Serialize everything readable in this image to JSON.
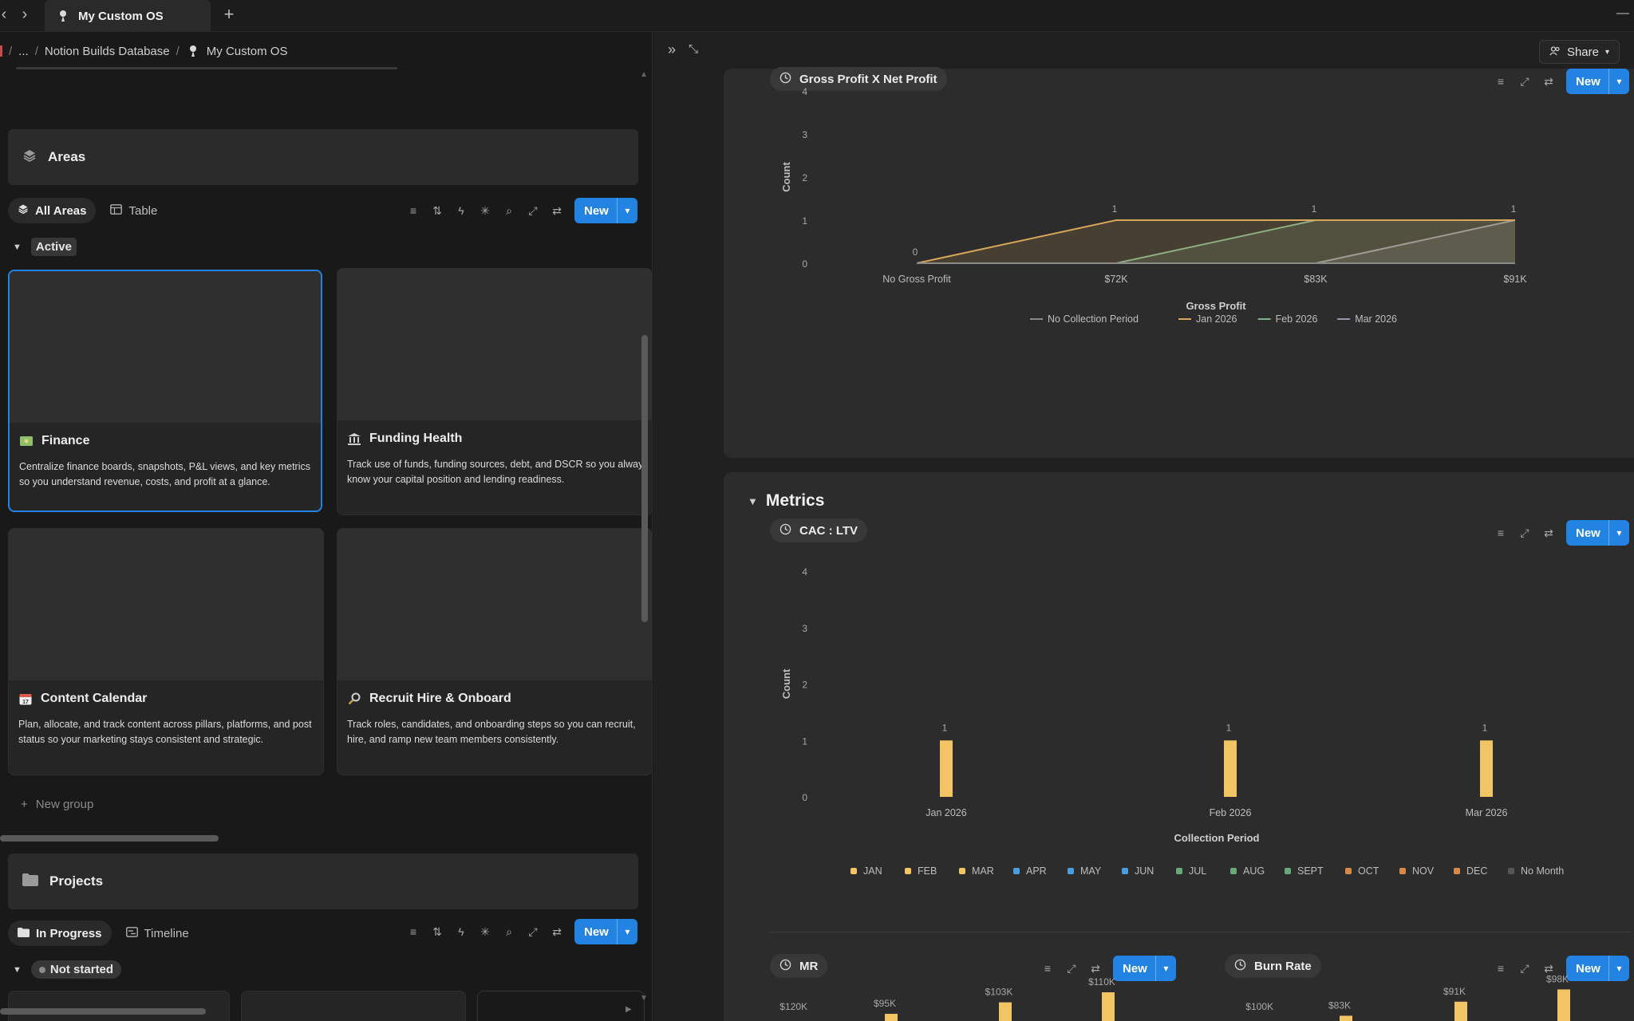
{
  "tabbar": {
    "tab_title": "My Custom OS",
    "new_tab_symbol": "+"
  },
  "breadcrumb": {
    "ellipsis": "...",
    "parent": "Notion Builds Database",
    "current": "My Custom OS"
  },
  "header": {
    "share_label": "Share"
  },
  "areas": {
    "title": "Areas",
    "views": [
      {
        "label": "All Areas",
        "active": true
      },
      {
        "label": "Table",
        "active": false
      }
    ],
    "new_label": "New",
    "group_label": "Active",
    "cards": [
      {
        "title": "Finance",
        "icon": "money-icon",
        "description": "Centralize finance boards, snapshots, P&L views, and key metrics\nso you understand revenue, costs, and profit at a glance."
      },
      {
        "title": "Funding Health",
        "icon": "bank-icon",
        "description": "Track use of funds, funding sources, debt, and DSCR so you alway\nknow your capital position and lending readiness."
      },
      {
        "title": "Content Calendar",
        "icon": "calendar-icon",
        "description": "Plan, allocate, and track content across pillars, platforms, and post\nstatus so your marketing stays consistent and strategic."
      },
      {
        "title": "Recruit Hire & Onboard",
        "icon": "magnifier-icon",
        "description": "Track roles, candidates, and onboarding steps so you can recruit,\nhire, and ramp new team members consistently."
      }
    ],
    "new_group_label": "New group"
  },
  "projects": {
    "title": "Projects",
    "views": [
      {
        "label": "In Progress",
        "active": true
      },
      {
        "label": "Timeline",
        "active": false
      }
    ],
    "new_label": "New",
    "group_label": "Not started"
  },
  "charts": {
    "gross_profit": {
      "chip_label": "Gross Profit X Net Profit",
      "new_label": "New"
    },
    "metrics_title": "Metrics",
    "cac_ltv": {
      "chip_label": "CAC : LTV",
      "new_label": "New"
    },
    "mr": {
      "chip_label": "MR",
      "new_label": "New"
    },
    "burn_rate": {
      "chip_label": "Burn Rate",
      "new_label": "New"
    }
  },
  "chart_data": [
    {
      "type": "area",
      "xlabel": "Gross Profit",
      "ylabel": "Count",
      "categories": [
        "No Gross Profit",
        "$72K",
        "$83K",
        "$91K"
      ],
      "ylim": [
        0,
        4
      ],
      "yticks": [
        "0",
        "1",
        "2",
        "3",
        "4"
      ],
      "series": [
        {
          "name": "No Collection Period",
          "color": "#8a8a8a",
          "values": [
            0,
            0,
            0,
            0
          ]
        },
        {
          "name": "Jan 2026",
          "color": "#d9a75a",
          "values": [
            0,
            1,
            1,
            1
          ]
        },
        {
          "name": "Feb 2026",
          "color": "#7fb08a",
          "values": [
            0,
            0,
            1,
            1
          ]
        },
        {
          "name": "Mar 2026",
          "color": "#9a93a8",
          "values": [
            0,
            0,
            0,
            1
          ]
        }
      ],
      "data_labels": [
        "0",
        "1",
        "1",
        "1"
      ],
      "legend": "bottom"
    },
    {
      "type": "bar",
      "xlabel": "Collection Period",
      "ylabel": "Count",
      "categories": [
        "Jan 2026",
        "Feb 2026",
        "Mar 2026"
      ],
      "values": [
        1,
        1,
        1
      ],
      "data_labels": [
        "1",
        "1",
        "1"
      ],
      "ylim": [
        0,
        4
      ],
      "yticks": [
        "0",
        "1",
        "2",
        "3",
        "4"
      ],
      "bar_color": "#f2c464",
      "legend_entries": [
        {
          "name": "JAN",
          "color": "#f2c464"
        },
        {
          "name": "FEB",
          "color": "#f2c464"
        },
        {
          "name": "MAR",
          "color": "#f2c464"
        },
        {
          "name": "APR",
          "color": "#4a9ee0"
        },
        {
          "name": "MAY",
          "color": "#4a9ee0"
        },
        {
          "name": "JUN",
          "color": "#4a9ee0"
        },
        {
          "name": "JUL",
          "color": "#6aa97a"
        },
        {
          "name": "AUG",
          "color": "#6aa97a"
        },
        {
          "name": "SEPT",
          "color": "#6aa97a"
        },
        {
          "name": "OCT",
          "color": "#d98a4a"
        },
        {
          "name": "NOV",
          "color": "#d98a4a"
        },
        {
          "name": "DEC",
          "color": "#d98a4a"
        },
        {
          "name": "No Month",
          "color": "#555555"
        }
      ],
      "legend": "bottom"
    },
    {
      "type": "bar",
      "yticks": [
        "$120K"
      ],
      "data_labels": [
        "$95K",
        "$103K",
        "$110K"
      ],
      "values": [
        95,
        103,
        110
      ],
      "bar_color": "#f2c464"
    },
    {
      "type": "bar",
      "yticks": [
        "$100K"
      ],
      "data_labels": [
        "$83K",
        "$91K",
        "$98K"
      ],
      "values": [
        83,
        91,
        98
      ],
      "bar_color": "#f2c464"
    }
  ]
}
